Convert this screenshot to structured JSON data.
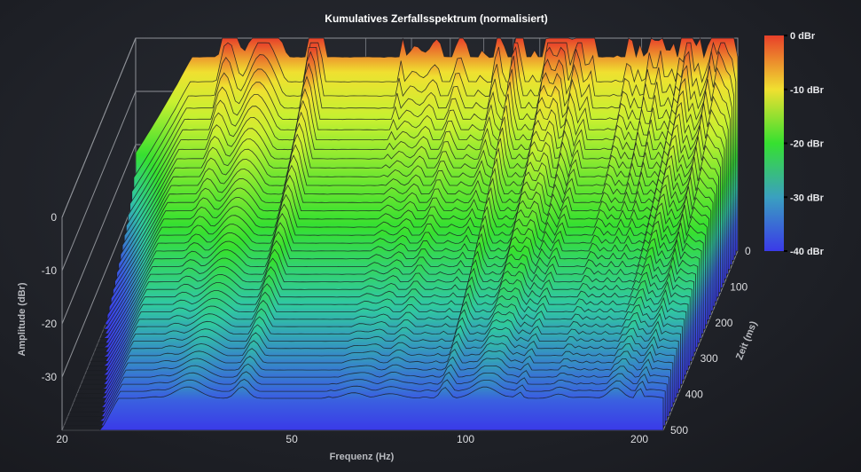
{
  "chart_data": {
    "type": "waterfall-3d",
    "title": "Kumulatives Zerfallsspektrum (normalisiert)",
    "xlabel": "Frequenz (Hz)",
    "ylabel": "Amplitude (dBr)",
    "zlabel": "Zeit (ms)",
    "x_scale": "log",
    "x_ticks": [
      "20",
      "50",
      "100",
      "200"
    ],
    "x_tick_values": [
      20,
      50,
      100,
      200
    ],
    "xlim": [
      20,
      220
    ],
    "y_ticks": [
      "0",
      "-10",
      "-20",
      "-30"
    ],
    "y_tick_values": [
      0,
      -10,
      -20,
      -30
    ],
    "ylim": [
      -40,
      0
    ],
    "z_ticks": [
      "0",
      "100",
      "200",
      "300",
      "400",
      "500"
    ],
    "z_tick_values": [
      0,
      100,
      200,
      300,
      400,
      500
    ],
    "zlim": [
      0,
      500
    ],
    "colorbar": {
      "labels": [
        "0 dBr",
        "-10 dBr",
        "-20 dBr",
        "-30 dBr",
        "-40 dBr"
      ],
      "values": [
        0,
        -10,
        -20,
        -30,
        -40
      ],
      "colors": [
        "#e8402a",
        "#f0e030",
        "#36e030",
        "#3aa0c0",
        "#3a3ae8"
      ]
    },
    "peaks_hz": [
      29,
      33,
      41,
      58,
      64,
      74,
      85,
      92,
      108,
      118,
      124,
      145,
      160,
      182,
      200,
      208
    ],
    "grid": true
  }
}
